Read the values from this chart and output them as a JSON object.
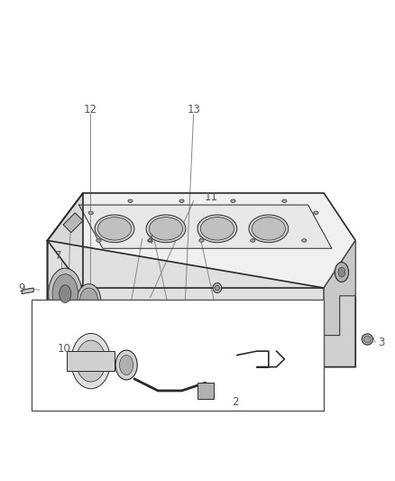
{
  "bg_color": "#ffffff",
  "line_color": "#2a2a2a",
  "label_color": "#555555",
  "fig_width": 4.38,
  "fig_height": 5.33,
  "dpi": 100
}
